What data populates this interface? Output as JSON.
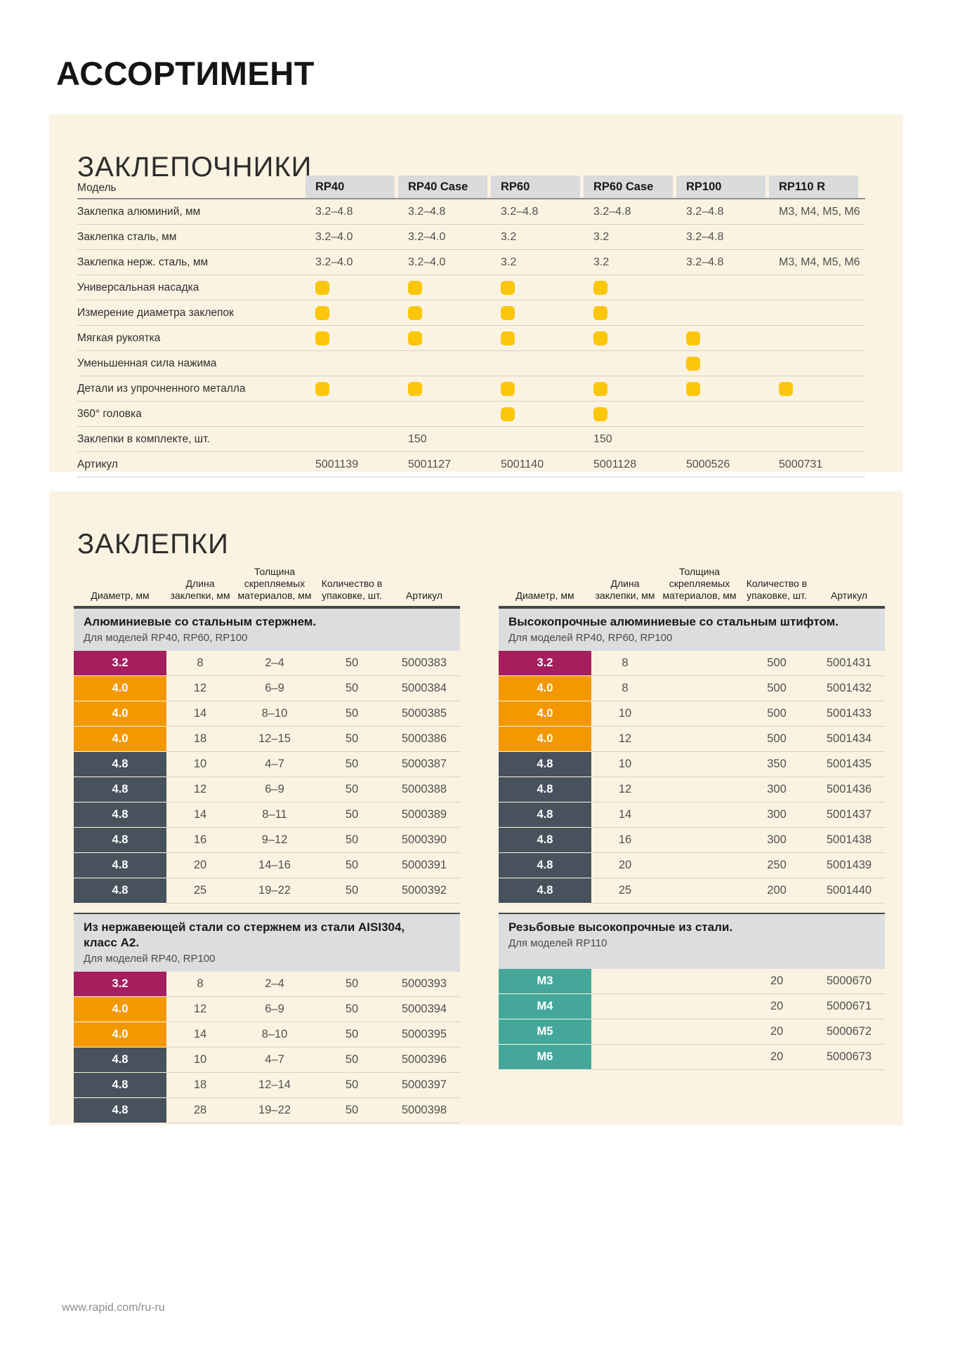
{
  "page": {
    "title": "АССОРТИМЕНТ",
    "footer_url": "www.rapid.com/ru-ru"
  },
  "colors": {
    "panel_bg": "#FBF3E2",
    "header_cell_bg": "#D9DBDC",
    "band_bg": "#DBDDDE",
    "check_yellow": "#FCC60A",
    "dia_3_2": "#A51E5E",
    "dia_4_0": "#F39800",
    "dia_4_8": "#48525D",
    "dia_m": "#44A79A"
  },
  "riveters": {
    "section_title": "ЗАКЛЕПОЧНИКИ",
    "model_label": "Модель",
    "models": [
      "RP40",
      "RP40 Case",
      "RP60",
      "RP60 Case",
      "RP100",
      "RP110 R"
    ],
    "rows": [
      {
        "label": "Заклепка алюминий, мм",
        "type": "text",
        "values": [
          "3.2–4.8",
          "3.2–4.8",
          "3.2–4.8",
          "3.2–4.8",
          "3.2–4.8",
          "M3, M4, M5, M6"
        ]
      },
      {
        "label": "Заклепка сталь, мм",
        "type": "text",
        "values": [
          "3.2–4.0",
          "3.2–4.0",
          "3.2",
          "3.2",
          "3.2–4.8",
          ""
        ]
      },
      {
        "label": "Заклепка нерж. сталь, мм",
        "type": "text",
        "values": [
          "3.2–4.0",
          "3.2–4.0",
          "3.2",
          "3.2",
          "3.2–4.8",
          "M3, M4, M5, M6"
        ]
      },
      {
        "label": "Универсальная насадка",
        "type": "check",
        "values": [
          1,
          1,
          1,
          1,
          0,
          0
        ]
      },
      {
        "label": "Измерение диаметра заклепок",
        "type": "check",
        "values": [
          1,
          1,
          1,
          1,
          0,
          0
        ]
      },
      {
        "label": "Мягкая рукоятка",
        "type": "check",
        "values": [
          1,
          1,
          1,
          1,
          1,
          0
        ]
      },
      {
        "label": "Уменьшенная сила нажима",
        "type": "check",
        "values": [
          0,
          0,
          0,
          0,
          1,
          0
        ]
      },
      {
        "label": "Детали из упрочненного металла",
        "type": "check",
        "values": [
          1,
          1,
          1,
          1,
          1,
          1
        ]
      },
      {
        "label": "360° головка",
        "type": "check",
        "values": [
          0,
          0,
          1,
          1,
          0,
          0
        ]
      },
      {
        "label": "Заклепки в комплекте, шт.",
        "type": "text",
        "values": [
          "",
          "150",
          "",
          "150",
          "",
          ""
        ]
      },
      {
        "label": "Артикул",
        "type": "text",
        "values": [
          "5001139",
          "5001127",
          "5001140",
          "5001128",
          "5000526",
          "5000731"
        ]
      }
    ]
  },
  "rivets": {
    "section_title": "ЗАКЛЕПКИ",
    "col_headers": [
      "Диаметр, мм",
      "Длина заклепки, мм",
      "Толщина скрепляемых материалов, мм",
      "Количество в упаковке, шт.",
      "Артикул"
    ],
    "tables": [
      {
        "title": "Алюминиевые со стальным стержнем.",
        "subtitle": "Для моделей RP40, RP60, RP100",
        "show_headers": true,
        "rows": [
          [
            "3.2",
            "8",
            "2–4",
            "50",
            "5000383"
          ],
          [
            "4.0",
            "12",
            "6–9",
            "50",
            "5000384"
          ],
          [
            "4.0",
            "14",
            "8–10",
            "50",
            "5000385"
          ],
          [
            "4.0",
            "18",
            "12–15",
            "50",
            "5000386"
          ],
          [
            "4.8",
            "10",
            "4–7",
            "50",
            "5000387"
          ],
          [
            "4.8",
            "12",
            "6–9",
            "50",
            "5000388"
          ],
          [
            "4.8",
            "14",
            "8–11",
            "50",
            "5000389"
          ],
          [
            "4.8",
            "16",
            "9–12",
            "50",
            "5000390"
          ],
          [
            "4.8",
            "20",
            "14–16",
            "50",
            "5000391"
          ],
          [
            "4.8",
            "25",
            "19–22",
            "50",
            "5000392"
          ]
        ]
      },
      {
        "title": "Высокопрочные алюминиевые со стальным штифтом.",
        "subtitle": "Для моделей RP40, RP60, RP100",
        "show_headers": true,
        "rows": [
          [
            "3.2",
            "8",
            "",
            "500",
            "5001431"
          ],
          [
            "4.0",
            "8",
            "",
            "500",
            "5001432"
          ],
          [
            "4.0",
            "10",
            "",
            "500",
            "5001433"
          ],
          [
            "4.0",
            "12",
            "",
            "500",
            "5001434"
          ],
          [
            "4.8",
            "10",
            "",
            "350",
            "5001435"
          ],
          [
            "4.8",
            "12",
            "",
            "300",
            "5001436"
          ],
          [
            "4.8",
            "14",
            "",
            "300",
            "5001437"
          ],
          [
            "4.8",
            "16",
            "",
            "300",
            "5001438"
          ],
          [
            "4.8",
            "20",
            "",
            "250",
            "5001439"
          ],
          [
            "4.8",
            "25",
            "",
            "200",
            "5001440"
          ]
        ]
      },
      {
        "title": "Из нержавеющей стали со стержнем из стали AISI304, класс А2.",
        "subtitle": "Для моделей RP40, RP100",
        "show_headers": false,
        "rows": [
          [
            "3.2",
            "8",
            "2–4",
            "50",
            "5000393"
          ],
          [
            "4.0",
            "12",
            "6–9",
            "50",
            "5000394"
          ],
          [
            "4.0",
            "14",
            "8–10",
            "50",
            "5000395"
          ],
          [
            "4.8",
            "10",
            "4–7",
            "50",
            "5000396"
          ],
          [
            "4.8",
            "18",
            "12–14",
            "50",
            "5000397"
          ],
          [
            "4.8",
            "28",
            "19–22",
            "50",
            "5000398"
          ]
        ]
      },
      {
        "title": "Резьбовые высокопрочные из стали.",
        "subtitle": "Для моделей RP110",
        "show_headers": false,
        "rows": [
          [
            "M3",
            "",
            "",
            "20",
            "5000670"
          ],
          [
            "M4",
            "",
            "",
            "20",
            "5000671"
          ],
          [
            "M5",
            "",
            "",
            "20",
            "5000672"
          ],
          [
            "M6",
            "",
            "",
            "20",
            "5000673"
          ]
        ]
      }
    ]
  }
}
